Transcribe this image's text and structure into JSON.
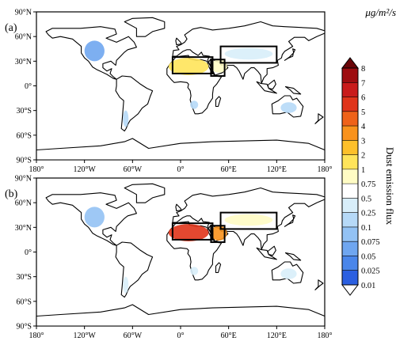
{
  "figure": {
    "unit_label": "μg/m²/s",
    "colorbar_label": "Dust emission flux"
  },
  "chart_data": {
    "type": "heatmap",
    "panels": [
      {
        "label": "(a)",
        "x_ticks": [
          "180°",
          "120°W",
          "60°W",
          "0°",
          "60°E",
          "120°E",
          "180°"
        ],
        "y_ticks": [
          "90°N",
          "60°N",
          "30°N",
          "0°",
          "30°S",
          "60°S",
          "90°S"
        ],
        "boxes": [
          {
            "lon": [
              -10,
              40
            ],
            "lat": [
              15,
              35
            ]
          },
          {
            "lon": [
              38,
              55
            ],
            "lat": [
              12,
              32
            ]
          },
          {
            "lon": [
              50,
              120
            ],
            "lat": [
              28,
              48
            ]
          }
        ],
        "regions": [
          {
            "name": "Sahara",
            "lon": [
              -15,
              35
            ],
            "lat": [
              13,
              34
            ],
            "level": 1.5
          },
          {
            "name": "Arabian Peninsula",
            "lon": [
              38,
              58
            ],
            "lat": [
              16,
              32
            ],
            "level": 0.75
          },
          {
            "name": "Central Asia",
            "lon": [
              55,
              115
            ],
            "lat": [
              32,
              46
            ],
            "level": 0.25
          },
          {
            "name": "North America",
            "lon": [
              -120,
              -95
            ],
            "lat": [
              30,
              55
            ],
            "level": 0.05
          },
          {
            "name": "Southwest Africa",
            "lon": [
              12,
              22
            ],
            "lat": [
              -28,
              -18
            ],
            "level": 0.1
          },
          {
            "name": "Australia",
            "lon": [
              125,
              145
            ],
            "lat": [
              -33,
              -20
            ],
            "level": 0.1
          },
          {
            "name": "Patagonia",
            "lon": [
              -72,
              -65
            ],
            "lat": [
              -50,
              -30
            ],
            "level": 0.1
          }
        ]
      },
      {
        "label": "(b)",
        "x_ticks": [
          "180°",
          "120°W",
          "60°W",
          "0°",
          "60°E",
          "120°E",
          "180°"
        ],
        "y_ticks": [
          "90°N",
          "60°N",
          "30°N",
          "0°",
          "30°S",
          "60°S",
          "90°S"
        ],
        "boxes": [
          {
            "lon": [
              -10,
              40
            ],
            "lat": [
              15,
              35
            ]
          },
          {
            "lon": [
              38,
              55
            ],
            "lat": [
              12,
              32
            ]
          },
          {
            "lon": [
              50,
              120
            ],
            "lat": [
              28,
              48
            ]
          }
        ],
        "regions": [
          {
            "name": "Sahara",
            "lon": [
              -15,
              35
            ],
            "lat": [
              13,
              34
            ],
            "level": 5
          },
          {
            "name": "Arabian Peninsula",
            "lon": [
              38,
              58
            ],
            "lat": [
              14,
              32
            ],
            "level": 3
          },
          {
            "name": "Central Asia",
            "lon": [
              55,
              115
            ],
            "lat": [
              32,
              46
            ],
            "level": 0.75
          },
          {
            "name": "North America",
            "lon": [
              -120,
              -95
            ],
            "lat": [
              30,
              55
            ],
            "level": 0.075
          },
          {
            "name": "Southwest Africa",
            "lon": [
              12,
              22
            ],
            "lat": [
              -28,
              -18
            ],
            "level": 0.25
          },
          {
            "name": "Australia",
            "lon": [
              125,
              145
            ],
            "lat": [
              -33,
              -20
            ],
            "level": 0.25
          },
          {
            "name": "Patagonia",
            "lon": [
              -72,
              -65
            ],
            "lat": [
              -50,
              -30
            ],
            "level": 0.25
          }
        ]
      }
    ],
    "colorbar": {
      "levels": [
        "0.01",
        "0.025",
        "0.05",
        "0.075",
        "0.1",
        "0.25",
        "0.5",
        "0.75",
        "1",
        "2",
        "3",
        "4",
        "5",
        "6",
        "7",
        "8"
      ],
      "colors": [
        "#ffffff",
        "#2b5fe0",
        "#4a86ea",
        "#6fa6f0",
        "#93c2f4",
        "#b6d9f7",
        "#d8eefa",
        "#ffffff",
        "#fffcc4",
        "#ffe45a",
        "#fdc02a",
        "#f9921c",
        "#ef6219",
        "#e0341a",
        "#c91b1b",
        "#9e0d10",
        "#6a0508"
      ]
    }
  }
}
